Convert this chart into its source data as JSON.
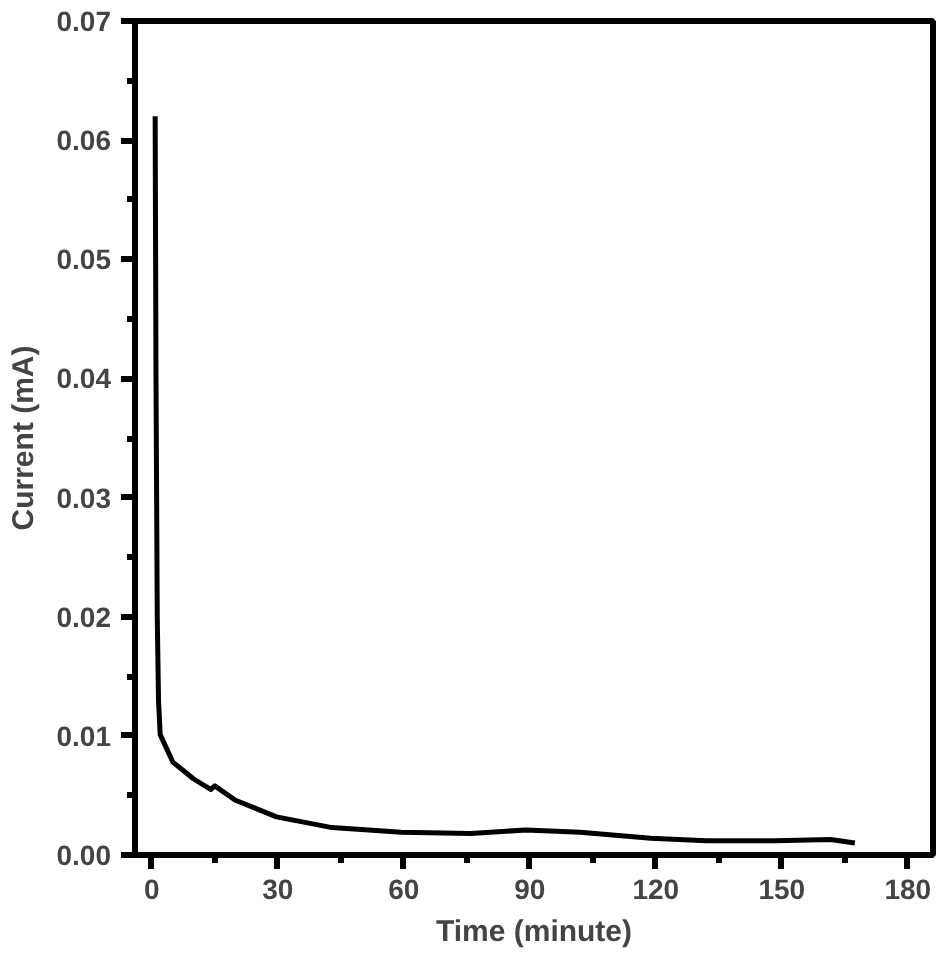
{
  "chart_data": {
    "type": "line",
    "xlabel": "Time (minute)",
    "ylabel": "Current (mA)",
    "xlim": [
      -4,
      186
    ],
    "ylim": [
      0,
      0.07
    ],
    "xticks": [
      0,
      30,
      60,
      90,
      120,
      150,
      180
    ],
    "yticks": [
      {
        "value": 0,
        "label": "0.00"
      },
      {
        "value": 0.01,
        "label": "0.01"
      },
      {
        "value": 0.02,
        "label": "0.02"
      },
      {
        "value": 0.03,
        "label": "0.03"
      },
      {
        "value": 0.04,
        "label": "0.04"
      },
      {
        "value": 0.05,
        "label": "0.05"
      },
      {
        "value": 0.06,
        "label": "0.06"
      },
      {
        "value": 0.07,
        "label": "0.07"
      }
    ],
    "grid": false,
    "marker": "none",
    "line_style": "solid",
    "series": [
      {
        "color": "#000000",
        "x": [
          0.8,
          1.0,
          1.3,
          1.6,
          2.0,
          5,
          9.9,
          14,
          15,
          19.9,
          29.7,
          42.9,
          59.4,
          75.9,
          89,
          102,
          118.8,
          132,
          148.4,
          161.6,
          167.4
        ],
        "values": [
          0.062,
          0.04,
          0.02,
          0.013,
          0.0101,
          0.0078,
          0.0064,
          0.0055,
          0.0058,
          0.0046,
          0.0032,
          0.0023,
          0.0019,
          0.0018,
          0.0021,
          0.0019,
          0.0014,
          0.0012,
          0.0012,
          0.0013,
          0.001
        ]
      }
    ]
  }
}
